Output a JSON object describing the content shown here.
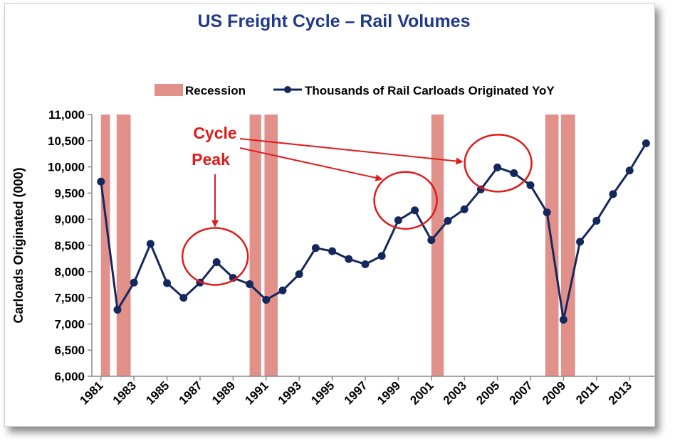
{
  "chart_data": {
    "type": "line",
    "title": "US Freight Cycle – Rail Volumes",
    "ylabel": "Carloads Originated (000)",
    "xlabel": "",
    "ylim": [
      6000,
      11000
    ],
    "yticks": [
      "6,000",
      "6,500",
      "7,000",
      "7,500",
      "8,000",
      "8,500",
      "9,000",
      "9,500",
      "10,000",
      "10,500",
      "11,000"
    ],
    "xticks": [
      "1981",
      "1983",
      "1985",
      "1987",
      "1989",
      "1991",
      "1993",
      "1995",
      "1997",
      "1999",
      "2001",
      "2003",
      "2005",
      "2007",
      "2009",
      "2011",
      "2013"
    ],
    "legend": {
      "placement": "top",
      "recession_label": "Recession",
      "series_label": "Thousands of Rail Carloads Originated YoY"
    },
    "recessions": [
      [
        1981,
        1981.55
      ],
      [
        1981.95,
        1982.8
      ],
      [
        1990,
        1990.7
      ],
      [
        1990.9,
        1991.7
      ],
      [
        2001,
        2001.75
      ],
      [
        2007.9,
        2008.7
      ],
      [
        2008.85,
        2009.7
      ]
    ],
    "series": [
      {
        "name": "Thousands of Rail Carloads Originated YoY",
        "x": [
          1981,
          1982,
          1983,
          1984,
          1985,
          1986,
          1987,
          1988,
          1989,
          1990,
          1991,
          1992,
          1993,
          1994,
          1995,
          1996,
          1997,
          1998,
          1999,
          2000,
          2001,
          2002,
          2003,
          2004,
          2005,
          2006,
          2007,
          2008,
          2009,
          2010,
          2011,
          2012,
          2013,
          2014
        ],
        "values": [
          9720,
          7270,
          7790,
          8530,
          7780,
          7500,
          7790,
          8180,
          7880,
          7760,
          7460,
          7640,
          7950,
          8450,
          8390,
          8240,
          8140,
          8300,
          8980,
          9170,
          8600,
          8970,
          9190,
          9570,
          9990,
          9880,
          9650,
          9130,
          7080,
          8570,
          8970,
          9480,
          9930,
          10450
        ]
      }
    ],
    "annotation": {
      "lines": [
        "Cycle",
        "Peak"
      ],
      "highlight_years": [
        1988,
        2000,
        2005
      ]
    },
    "colors": {
      "line": "#14285e",
      "recession": "#e2908a",
      "annotation": "#e01b1b",
      "title": "#1f3a8a"
    }
  }
}
